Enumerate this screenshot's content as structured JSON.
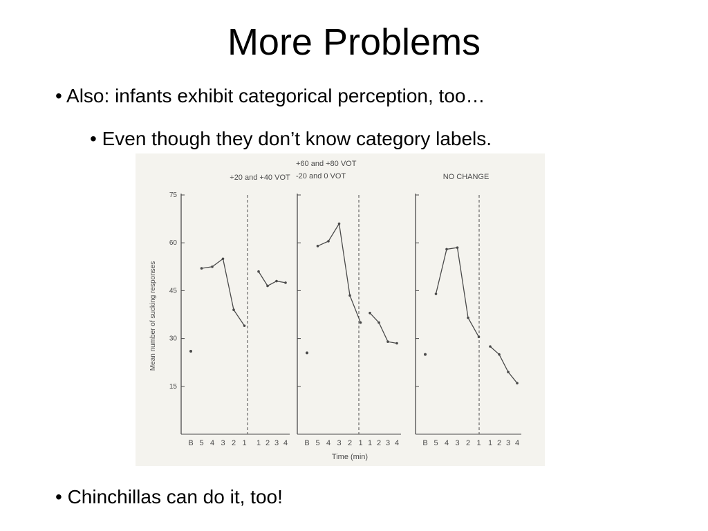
{
  "slide": {
    "title": "More Problems",
    "bullets": [
      "• Also: infants exhibit categorical perception, too…",
      "• Even though they don’t know category labels.",
      "• Chinchillas can do it, too!"
    ]
  },
  "chart_data": {
    "type": "line",
    "ylabel": "Mean number of sucking responses",
    "xlabel": "Time (min)",
    "ylim": [
      0,
      75
    ],
    "yticks": [
      "75",
      "60",
      "45",
      "30",
      "15"
    ],
    "xticks_pre": [
      "B",
      "5",
      "4",
      "3",
      "2",
      "1"
    ],
    "xticks_post": [
      "1",
      "2",
      "3",
      "4"
    ],
    "panels": [
      {
        "title_lines": [
          "+20 and +40 VOT"
        ],
        "baseline": 26,
        "pre": [
          52,
          52.5,
          55,
          39,
          34
        ],
        "post": [
          51,
          46.5,
          48,
          47.5
        ]
      },
      {
        "title_lines": [
          "+60 and +80 VOT",
          "-20 and 0 VOT"
        ],
        "baseline": 25.5,
        "pre": [
          59,
          60.5,
          66,
          43.5,
          35
        ],
        "post": [
          38,
          35,
          29,
          28.5
        ]
      },
      {
        "title_lines": [
          "NO CHANGE"
        ],
        "baseline": 25,
        "pre": [
          44,
          58,
          58.5,
          36.5,
          30.5
        ],
        "post": [
          27.5,
          25,
          19.5,
          16
        ]
      }
    ]
  }
}
